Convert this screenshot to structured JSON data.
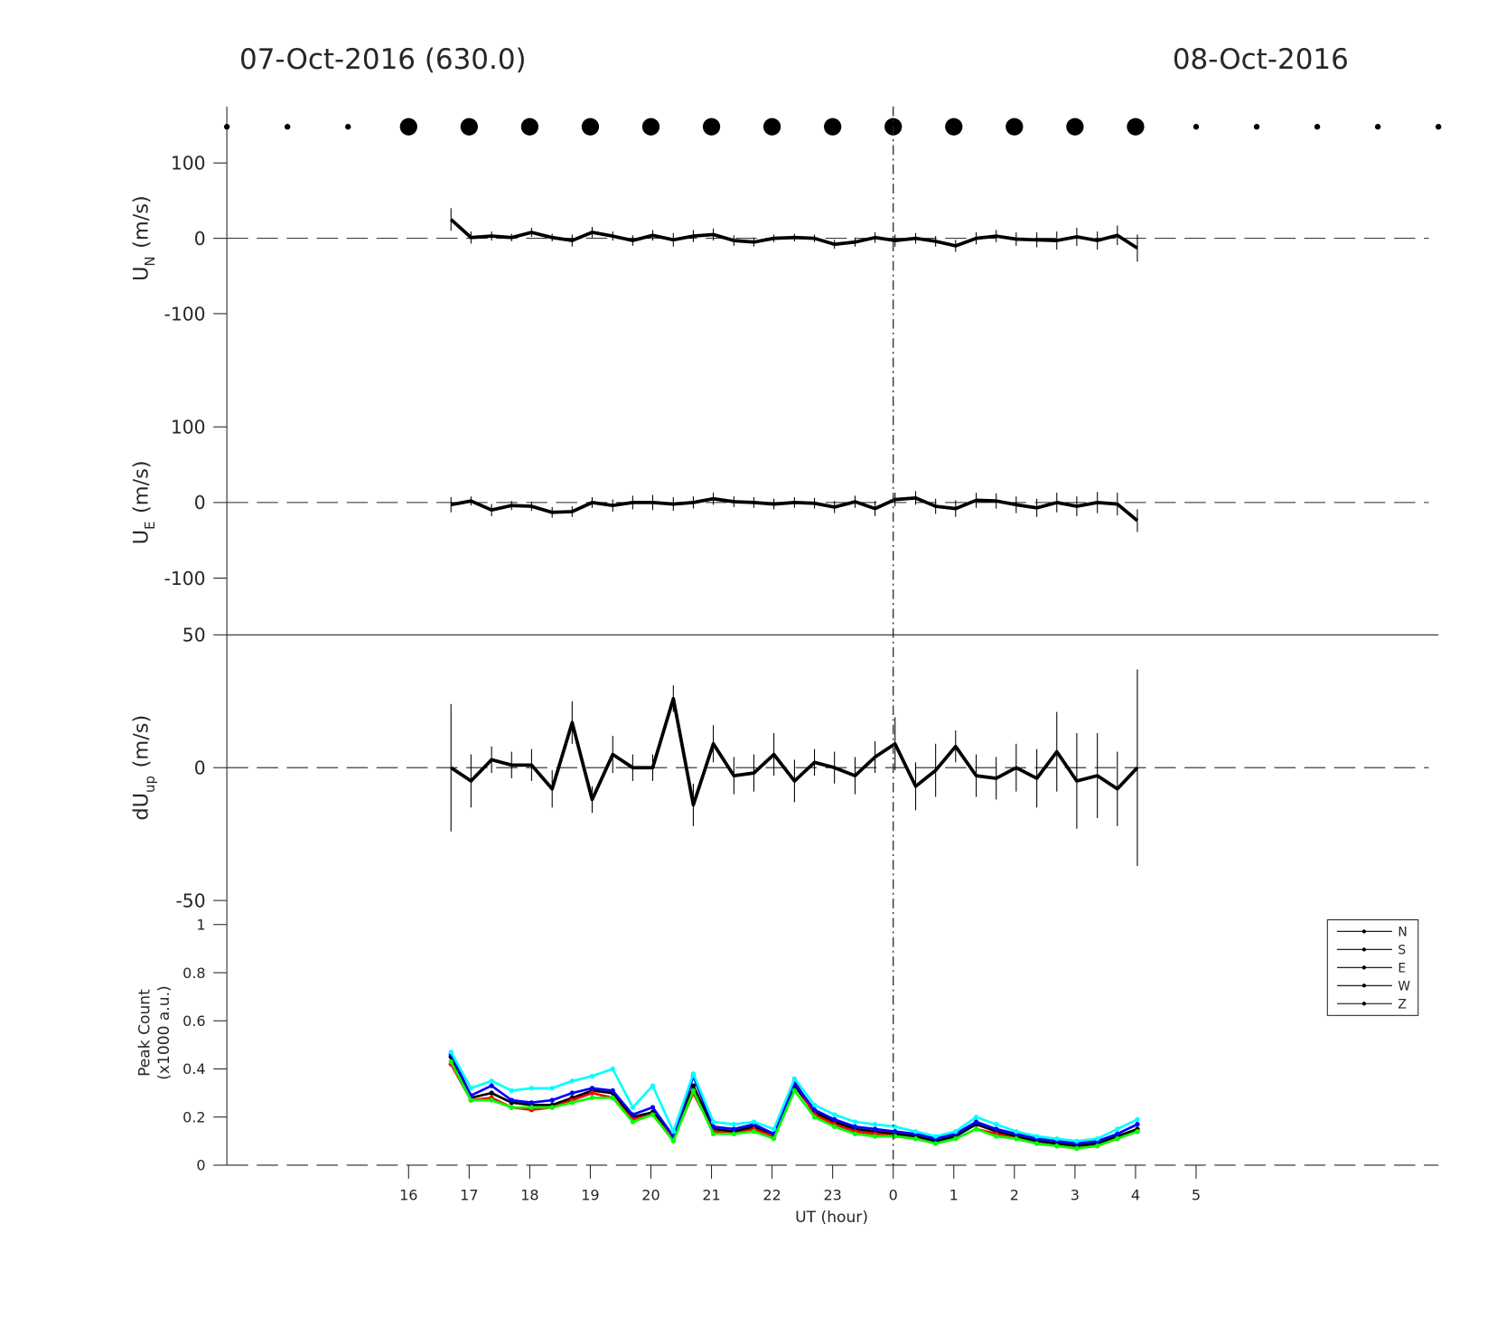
{
  "chart_data": [
    {
      "type": "line",
      "title": "07-Oct-2016 (630.0)",
      "title_right": "08-Oct-2016",
      "ylabel_main": "U",
      "ylabel_sub": "N",
      "ylabel_unit": "(m/s)",
      "xlim": [
        13,
        33
      ],
      "ylim": [
        -175,
        175
      ],
      "yticks": [
        -100,
        0,
        100
      ],
      "zero_line": true,
      "vline_x": 24,
      "markers": {
        "x": [
          13,
          14,
          15,
          16,
          17,
          18,
          19,
          20,
          21,
          22,
          23,
          24,
          25,
          26,
          27,
          28,
          29,
          30,
          31,
          32,
          33
        ],
        "large": [
          false,
          false,
          false,
          true,
          true,
          true,
          true,
          true,
          true,
          true,
          true,
          true,
          true,
          true,
          true,
          true,
          false,
          false,
          false,
          false,
          false
        ]
      },
      "x": [
        16.7,
        17.03,
        17.37,
        17.7,
        18.03,
        18.37,
        18.7,
        19.03,
        19.37,
        19.7,
        20.03,
        20.37,
        20.7,
        21.03,
        21.37,
        21.7,
        22.03,
        22.37,
        22.7,
        23.03,
        23.37,
        23.7,
        24.03,
        24.37,
        24.7,
        25.03,
        25.37,
        25.7,
        26.03,
        26.37,
        26.7,
        27.03,
        27.37,
        27.7,
        28.03
      ],
      "series": [
        {
          "color": "#000000",
          "values": [
            25,
            1,
            3,
            1,
            8,
            1,
            -3,
            8,
            3,
            -3,
            4,
            -2,
            3,
            5,
            -3,
            -5,
            0,
            1,
            0,
            -8,
            -5,
            1,
            -3,
            0,
            -4,
            -10,
            0,
            3,
            -1,
            -2,
            -3,
            2,
            -3,
            4,
            -13
          ],
          "errors": [
            15,
            8,
            6,
            5,
            6,
            5,
            8,
            7,
            6,
            7,
            7,
            9,
            8,
            8,
            7,
            6,
            5,
            5,
            5,
            6,
            6,
            7,
            8,
            7,
            7,
            8,
            8,
            8,
            9,
            10,
            12,
            12,
            12,
            13,
            18
          ]
        }
      ]
    },
    {
      "type": "line",
      "ylabel_main": "U",
      "ylabel_sub": "E",
      "ylabel_unit": "(m/s)",
      "xlim": [
        13,
        33
      ],
      "ylim": [
        -175,
        175
      ],
      "yticks": [
        -100,
        0,
        100
      ],
      "zero_line": true,
      "x": [
        16.7,
        17.03,
        17.37,
        17.7,
        18.03,
        18.37,
        18.7,
        19.03,
        19.37,
        19.7,
        20.03,
        20.37,
        20.7,
        21.03,
        21.37,
        21.7,
        22.03,
        22.37,
        22.7,
        23.03,
        23.37,
        23.7,
        24.03,
        24.37,
        24.7,
        25.03,
        25.37,
        25.7,
        26.03,
        26.37,
        26.7,
        27.03,
        27.37,
        27.7,
        28.03
      ],
      "series": [
        {
          "color": "#000000",
          "values": [
            -3,
            2,
            -10,
            -4,
            -5,
            -13,
            -12,
            0,
            -4,
            0,
            0,
            -2,
            0,
            5,
            1,
            0,
            -2,
            0,
            -1,
            -6,
            1,
            -8,
            4,
            6,
            -5,
            -8,
            3,
            2,
            -3,
            -7,
            0,
            -5,
            0,
            -2,
            -24
          ],
          "errors": [
            10,
            6,
            8,
            6,
            6,
            7,
            7,
            7,
            8,
            9,
            10,
            9,
            8,
            8,
            7,
            7,
            7,
            7,
            7,
            8,
            8,
            10,
            9,
            9,
            10,
            11,
            10,
            10,
            11,
            12,
            13,
            13,
            14,
            15,
            15
          ]
        }
      ]
    },
    {
      "type": "line",
      "ylabel_main": "dU",
      "ylabel_sub": "up",
      "ylabel_unit": "(m/s)",
      "xlim": [
        13,
        33
      ],
      "ylim": [
        -50,
        50
      ],
      "yticks": [
        -50,
        0,
        50
      ],
      "zero_line": true,
      "x": [
        16.7,
        17.03,
        17.37,
        17.7,
        18.03,
        18.37,
        18.7,
        19.03,
        19.37,
        19.7,
        20.03,
        20.37,
        20.7,
        21.03,
        21.37,
        21.7,
        22.03,
        22.37,
        22.7,
        23.03,
        23.37,
        23.7,
        24.03,
        24.37,
        24.7,
        25.03,
        25.37,
        25.7,
        26.03,
        26.37,
        26.7,
        27.03,
        27.37,
        27.7,
        28.03
      ],
      "series": [
        {
          "color": "#000000",
          "values": [
            0,
            -5,
            3,
            1,
            1,
            -8,
            17,
            -12,
            5,
            0,
            0,
            26,
            -14,
            9,
            -3,
            -2,
            5,
            -5,
            2,
            0,
            -3,
            4,
            9,
            -7,
            -1,
            8,
            -3,
            -4,
            0,
            -4,
            6,
            -5,
            -3,
            -8,
            0
          ],
          "errors": [
            24,
            10,
            5,
            5,
            6,
            7,
            8,
            5,
            7,
            5,
            5,
            5,
            8,
            7,
            7,
            7,
            8,
            8,
            5,
            6,
            7,
            6,
            10,
            9,
            10,
            6,
            8,
            8,
            9,
            11,
            15,
            18,
            16,
            14,
            37
          ]
        }
      ]
    },
    {
      "type": "line",
      "ylabel_main": "Peak Count",
      "ylabel_unit": "(x1000 a.u.)",
      "xlabel": "UT (hour)",
      "xlim": [
        13,
        33
      ],
      "ylim": [
        0,
        1.1
      ],
      "yticks": [
        0,
        0.2,
        0.4,
        0.6,
        0.8,
        1
      ],
      "zero_line": true,
      "xticks": [
        16,
        17,
        18,
        19,
        20,
        21,
        22,
        23,
        {
          "value": 24,
          "label": "0"
        },
        {
          "value": 25,
          "label": "1"
        },
        {
          "value": 26,
          "label": "2"
        },
        {
          "value": 27,
          "label": "3"
        },
        {
          "value": 28,
          "label": "4"
        },
        {
          "value": 29,
          "label": "5"
        }
      ],
      "legend_loc": "right",
      "legend_color": "#000000",
      "x": [
        16.7,
        17.03,
        17.37,
        17.7,
        18.03,
        18.37,
        18.7,
        19.03,
        19.37,
        19.7,
        20.03,
        20.37,
        20.7,
        21.03,
        21.37,
        21.7,
        22.03,
        22.37,
        22.7,
        23.03,
        23.37,
        23.7,
        24.03,
        24.37,
        24.7,
        25.03,
        25.37,
        25.7,
        26.03,
        26.37,
        26.7,
        27.03,
        27.37,
        27.7,
        28.03
      ],
      "series": [
        {
          "name": "N",
          "color": "#000000",
          "values": [
            0.45,
            0.28,
            0.3,
            0.26,
            0.25,
            0.25,
            0.28,
            0.31,
            0.3,
            0.2,
            0.22,
            0.12,
            0.33,
            0.15,
            0.14,
            0.16,
            0.12,
            0.33,
            0.22,
            0.18,
            0.15,
            0.14,
            0.13,
            0.12,
            0.1,
            0.12,
            0.17,
            0.14,
            0.12,
            0.1,
            0.09,
            0.08,
            0.09,
            0.12,
            0.15
          ]
        },
        {
          "name": "S",
          "color": "#ff0000",
          "values": [
            0.42,
            0.27,
            0.28,
            0.24,
            0.23,
            0.24,
            0.27,
            0.3,
            0.28,
            0.19,
            0.21,
            0.11,
            0.3,
            0.14,
            0.13,
            0.15,
            0.12,
            0.35,
            0.21,
            0.17,
            0.14,
            0.13,
            0.12,
            0.11,
            0.09,
            0.11,
            0.15,
            0.13,
            0.11,
            0.09,
            0.08,
            0.07,
            0.08,
            0.11,
            0.14
          ]
        },
        {
          "name": "E",
          "color": "#0000ff",
          "values": [
            0.46,
            0.29,
            0.33,
            0.27,
            0.26,
            0.27,
            0.3,
            0.32,
            0.31,
            0.21,
            0.24,
            0.12,
            0.37,
            0.16,
            0.15,
            0.17,
            0.13,
            0.34,
            0.23,
            0.19,
            0.16,
            0.15,
            0.14,
            0.13,
            0.11,
            0.13,
            0.18,
            0.15,
            0.13,
            0.11,
            0.1,
            0.09,
            0.1,
            0.13,
            0.17
          ]
        },
        {
          "name": "W",
          "color": "#00ff00",
          "values": [
            0.43,
            0.27,
            0.27,
            0.24,
            0.24,
            0.24,
            0.26,
            0.28,
            0.28,
            0.18,
            0.21,
            0.1,
            0.31,
            0.13,
            0.13,
            0.14,
            0.11,
            0.31,
            0.2,
            0.16,
            0.13,
            0.12,
            0.12,
            0.11,
            0.09,
            0.11,
            0.15,
            0.12,
            0.11,
            0.09,
            0.08,
            0.07,
            0.08,
            0.11,
            0.14
          ]
        },
        {
          "name": "Z",
          "color": "#00ffff",
          "values": [
            0.47,
            0.32,
            0.35,
            0.31,
            0.32,
            0.32,
            0.35,
            0.37,
            0.4,
            0.24,
            0.33,
            0.14,
            0.38,
            0.18,
            0.17,
            0.18,
            0.15,
            0.36,
            0.25,
            0.21,
            0.18,
            0.17,
            0.16,
            0.14,
            0.12,
            0.14,
            0.2,
            0.17,
            0.14,
            0.12,
            0.11,
            0.1,
            0.11,
            0.15,
            0.19
          ]
        }
      ]
    }
  ]
}
